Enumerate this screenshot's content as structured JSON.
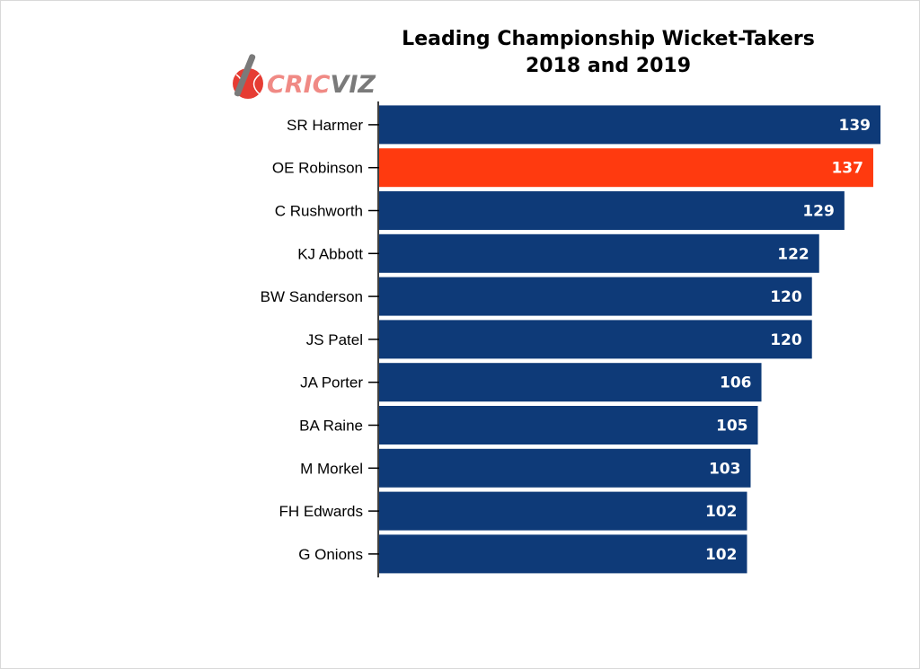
{
  "chart_data": {
    "type": "bar",
    "orientation": "horizontal",
    "title": "Leading Championship Wicket-Takers",
    "subtitle": "2018 and 2019",
    "categories": [
      "SR Harmer",
      "OE Robinson",
      "C Rushworth",
      "KJ Abbott",
      "BW Sanderson",
      "JS Patel",
      "JA Porter",
      "BA Raine",
      "M Morkel",
      "FH Edwards",
      "G Onions"
    ],
    "values": [
      139,
      137,
      129,
      122,
      120,
      120,
      106,
      105,
      103,
      102,
      102
    ],
    "highlight_category": "OE Robinson",
    "xlim": [
      0,
      140
    ],
    "grid": false,
    "data_labels": true
  },
  "colors": {
    "bar": "#0e3a78",
    "highlight": "#ff3a0f",
    "logo_red": "#e63c33",
    "logo_text_light": "#f08a85",
    "logo_text_dark": "#7a7a7a"
  },
  "logo": {
    "text_part1": "CRIC",
    "text_part2": "VIZ"
  }
}
